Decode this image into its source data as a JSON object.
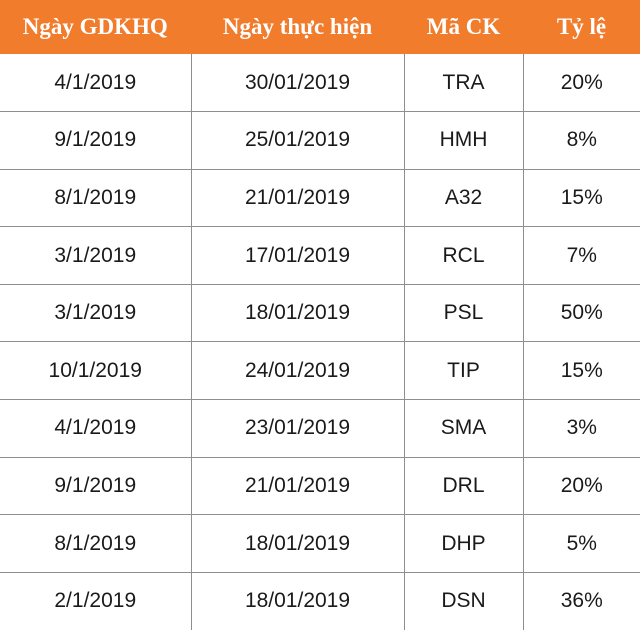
{
  "table": {
    "header_color": "#f07c2c",
    "headers": [
      "Ngày GDKHQ",
      "Ngày thực hiện",
      "Mã CK",
      "Tỷ lệ"
    ],
    "rows": [
      [
        "4/1/2019",
        "30/01/2019",
        "TRA",
        "20%"
      ],
      [
        "9/1/2019",
        "25/01/2019",
        "HMH",
        "8%"
      ],
      [
        "8/1/2019",
        "21/01/2019",
        "A32",
        "15%"
      ],
      [
        "3/1/2019",
        "17/01/2019",
        "RCL",
        "7%"
      ],
      [
        "3/1/2019",
        "18/01/2019",
        "PSL",
        "50%"
      ],
      [
        "10/1/2019",
        "24/01/2019",
        "TIP",
        "15%"
      ],
      [
        "4/1/2019",
        "23/01/2019",
        "SMA",
        "3%"
      ],
      [
        "9/1/2019",
        "21/01/2019",
        "DRL",
        "20%"
      ],
      [
        "8/1/2019",
        "18/01/2019",
        "DHP",
        "5%"
      ],
      [
        "2/1/2019",
        "18/01/2019",
        "DSN",
        "36%"
      ]
    ]
  }
}
